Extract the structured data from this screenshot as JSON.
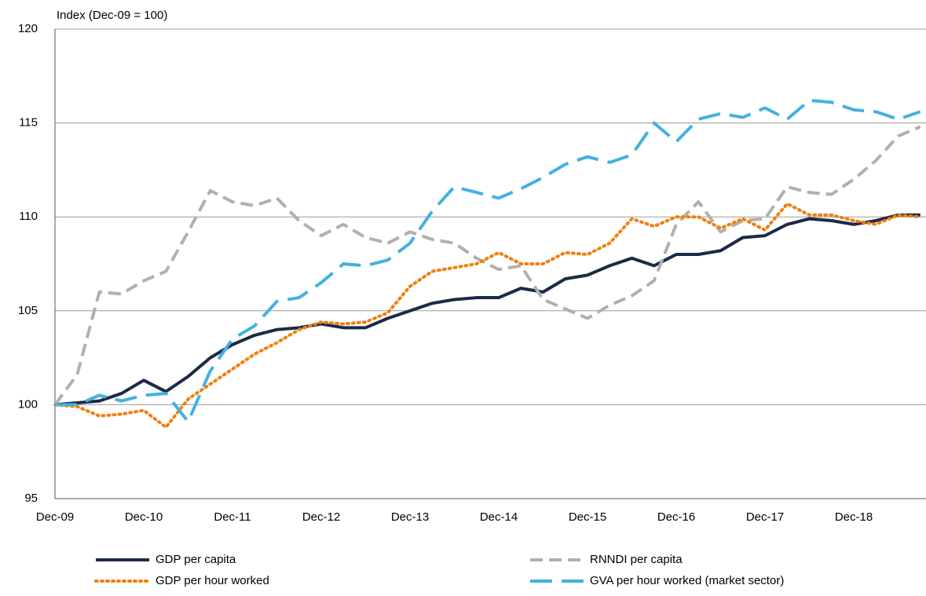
{
  "chart_data": {
    "type": "line",
    "y_label": "Index (Dec-09 = 100)",
    "categories": [
      "Dec-09",
      null,
      null,
      null,
      "Dec-10",
      null,
      null,
      null,
      "Dec-11",
      null,
      null,
      null,
      "Dec-12",
      null,
      null,
      null,
      "Dec-13",
      null,
      null,
      null,
      "Dec-14",
      null,
      null,
      null,
      "Dec-15",
      null,
      null,
      null,
      "Dec-16",
      null,
      null,
      null,
      "Dec-17",
      null,
      null,
      null,
      "Dec-18",
      null,
      null,
      null
    ],
    "ylim": [
      95,
      120
    ],
    "yticks": [
      95,
      100,
      105,
      110,
      115,
      120
    ],
    "grid": true,
    "legend": "bottom",
    "series": [
      {
        "name": "GDP  per capita",
        "color": "#1b2a47",
        "style": "solid",
        "values": [
          100.0,
          100.1,
          100.2,
          100.6,
          101.3,
          100.7,
          101.5,
          102.5,
          103.2,
          103.7,
          104.0,
          104.1,
          104.3,
          104.1,
          104.1,
          104.6,
          105.0,
          105.4,
          105.6,
          105.7,
          105.7,
          106.2,
          106.0,
          106.7,
          106.9,
          107.4,
          107.8,
          107.4,
          108.0,
          108.0,
          108.2,
          108.9,
          109.0,
          109.6,
          109.9,
          109.8,
          109.6,
          109.8,
          110.1,
          110.1
        ]
      },
      {
        "name": "RNNDI per capita",
        "color": "#b0b0b0",
        "style": "dashed",
        "values": [
          100.0,
          101.6,
          106.0,
          105.9,
          106.6,
          107.1,
          109.2,
          111.4,
          110.8,
          110.6,
          111.0,
          109.8,
          109.0,
          109.6,
          108.9,
          108.6,
          109.2,
          108.8,
          108.6,
          107.8,
          107.2,
          107.4,
          105.6,
          105.1,
          104.6,
          105.3,
          105.8,
          106.6,
          109.6,
          110.8,
          109.2,
          109.8,
          109.9,
          111.6,
          111.3,
          111.2,
          112.0,
          113.0,
          114.3,
          114.8
        ]
      },
      {
        "name": "GDP per hour worked",
        "color": "#f07f10",
        "style": "dotted",
        "values": [
          100.0,
          99.9,
          99.4,
          99.5,
          99.7,
          98.8,
          100.3,
          101.1,
          101.9,
          102.7,
          103.3,
          104.0,
          104.4,
          104.3,
          104.4,
          104.9,
          106.3,
          107.1,
          107.3,
          107.5,
          108.1,
          107.5,
          107.5,
          108.1,
          108.0,
          108.6,
          109.9,
          109.5,
          110.0,
          110.0,
          109.4,
          109.9,
          109.3,
          110.7,
          110.1,
          110.1,
          109.8,
          109.6,
          110.1,
          110.0
        ]
      },
      {
        "name": "GVA per hour worked (market sector)",
        "color": "#45b0e1",
        "style": "dashed",
        "values": [
          100.0,
          100.0,
          100.5,
          100.2,
          100.5,
          100.6,
          99.1,
          101.8,
          103.5,
          104.2,
          105.5,
          105.7,
          106.5,
          107.5,
          107.4,
          107.7,
          108.6,
          110.3,
          111.6,
          111.3,
          111.0,
          111.5,
          112.1,
          112.8,
          113.2,
          112.9,
          113.3,
          115.0,
          114.0,
          115.2,
          115.5,
          115.3,
          115.8,
          115.2,
          116.2,
          116.1,
          115.7,
          115.6,
          115.2,
          115.6
        ]
      }
    ]
  }
}
